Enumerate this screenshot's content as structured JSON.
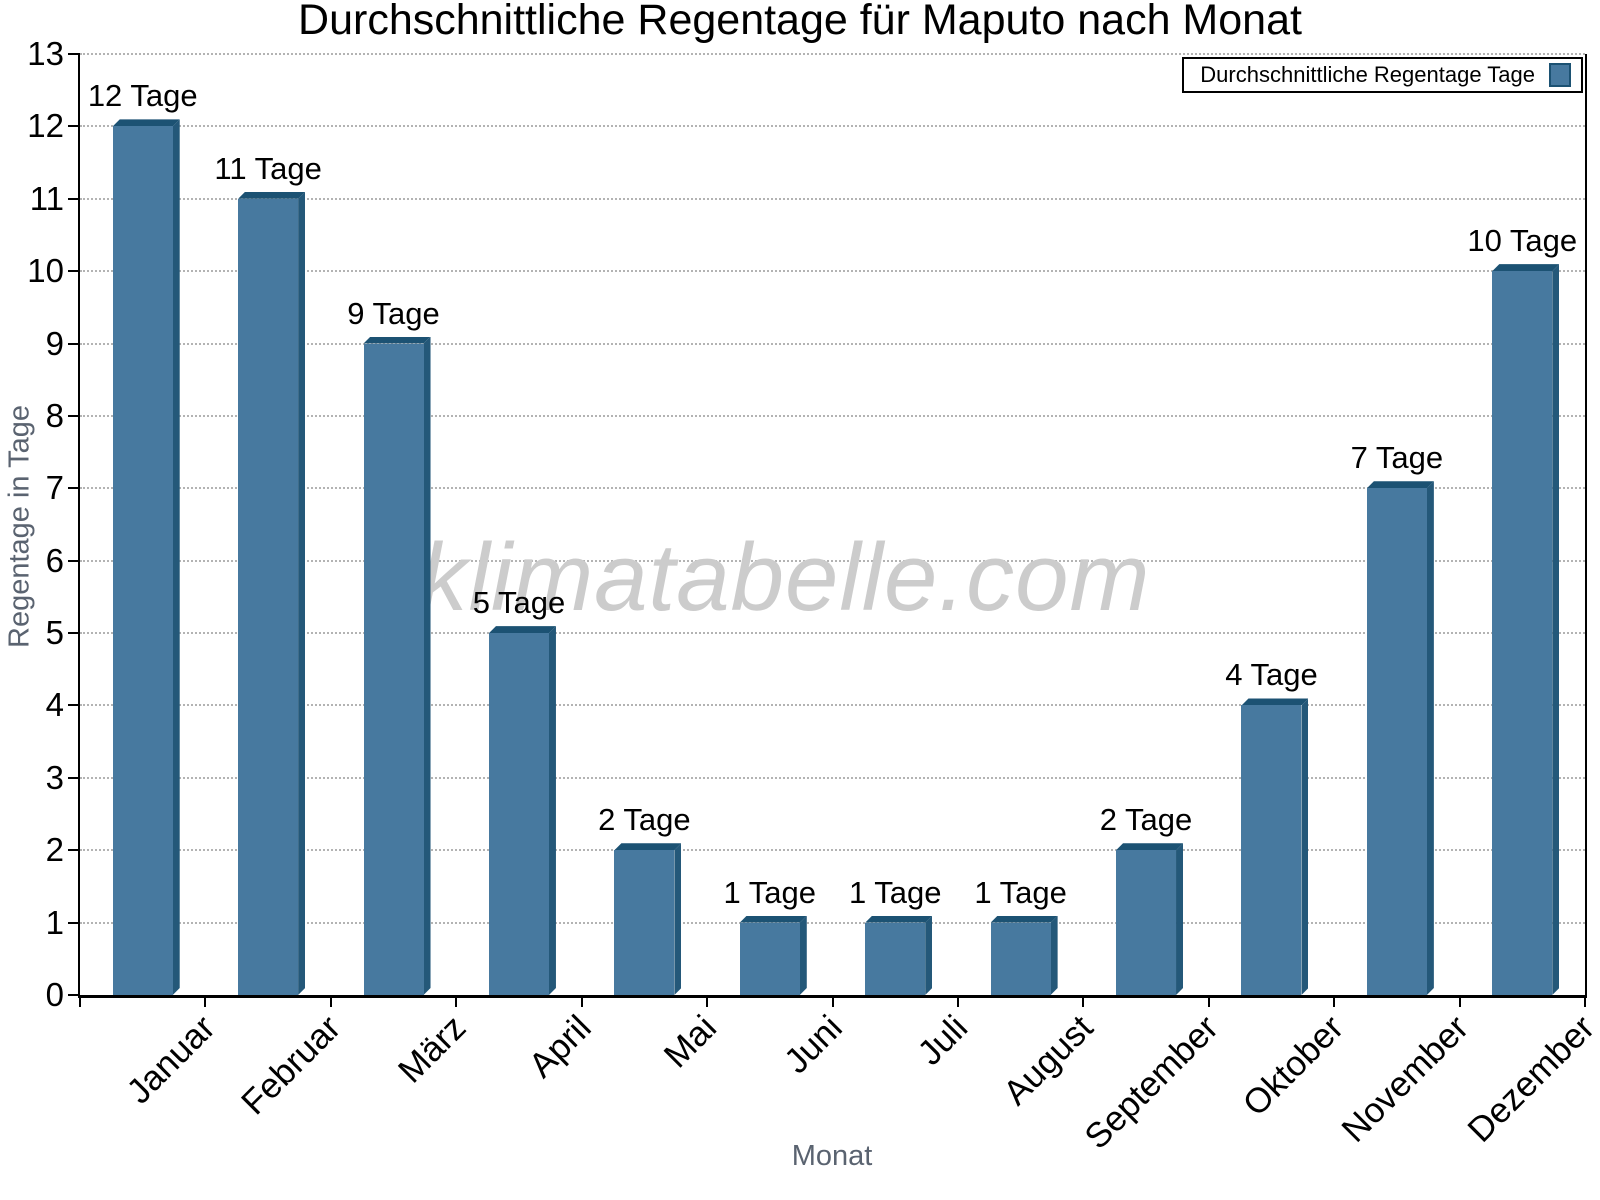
{
  "title": "Durchschnittliche Regentage für Maputo nach Monat",
  "watermark": "klimatabelle.com",
  "legend": {
    "label": "Durchschnittliche Regentage Tage"
  },
  "axes": {
    "x_title": "Monat",
    "y_title": "Regentage in Tage"
  },
  "chart_data": {
    "type": "bar",
    "title": "Durchschnittliche Regentage für Maputo nach Monat",
    "xlabel": "Monat",
    "ylabel": "Regentage in Tage",
    "categories": [
      "Januar",
      "Februar",
      "März",
      "April",
      "Mai",
      "Juni",
      "Juli",
      "August",
      "September",
      "Oktober",
      "November",
      "Dezember"
    ],
    "values": [
      12,
      11,
      9,
      5,
      2,
      1,
      1,
      1,
      2,
      4,
      7,
      10
    ],
    "bar_labels": [
      "12 Tage",
      "11 Tage",
      "9 Tage",
      "5 Tage",
      "2 Tage",
      "1 Tage",
      "1 Tage",
      "1 Tage",
      "2 Tage",
      "4 Tage",
      "7 Tage",
      "10 Tage"
    ],
    "series_name": "Durchschnittliche Regentage Tage",
    "ylim": [
      0,
      13
    ],
    "y_ticks": [
      0,
      1,
      2,
      3,
      4,
      5,
      6,
      7,
      8,
      9,
      10,
      11,
      12,
      13
    ],
    "grid": "horizontal-dotted",
    "legend_position": "top-right",
    "colors": {
      "bar_front": "#47799F",
      "bar_top": "#1C5273",
      "bar_side": "#245879",
      "grid": "#b3b3b3",
      "axis_title_text": "#5a6370",
      "watermark": "#cccccc"
    }
  }
}
